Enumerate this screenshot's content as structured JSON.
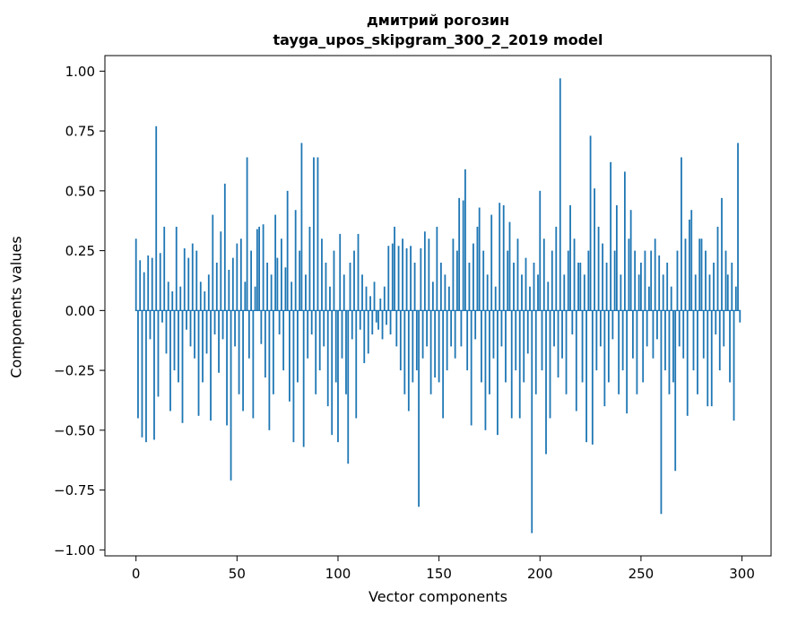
{
  "chart_data": {
    "type": "bar",
    "title_line1": "дмитрий рогозин",
    "title_line2": "tayga_upos_skipgram_300_2_2019 model",
    "xlabel": "Vector components",
    "ylabel": "Components values",
    "xlim": [
      -15.4,
      314.4
    ],
    "ylim": [
      -1.025,
      1.065
    ],
    "xticks": [
      0,
      50,
      100,
      150,
      200,
      250,
      300
    ],
    "yticks": [
      -1.0,
      -0.75,
      -0.5,
      -0.25,
      0.0,
      0.25,
      0.5,
      0.75,
      1.0
    ],
    "bar_color": "#1f77b4",
    "axis_color": "#000000",
    "bar_data_width": 0.8,
    "values": [
      0.3,
      -0.45,
      0.21,
      -0.53,
      0.16,
      -0.55,
      0.23,
      -0.12,
      0.22,
      -0.54,
      0.77,
      -0.36,
      0.24,
      -0.05,
      0.35,
      -0.18,
      0.12,
      -0.42,
      0.08,
      -0.25,
      0.35,
      -0.3,
      0.1,
      -0.47,
      0.26,
      -0.08,
      0.22,
      -0.15,
      0.28,
      -0.2,
      0.25,
      -0.44,
      0.12,
      -0.3,
      0.08,
      -0.18,
      0.15,
      -0.46,
      0.4,
      -0.1,
      0.2,
      -0.26,
      0.33,
      -0.12,
      0.53,
      -0.48,
      0.17,
      -0.71,
      0.22,
      -0.15,
      0.28,
      -0.35,
      0.3,
      -0.42,
      0.12,
      0.64,
      -0.2,
      0.25,
      -0.45,
      0.1,
      0.34,
      0.35,
      -0.14,
      0.36,
      -0.28,
      0.2,
      -0.5,
      0.15,
      -0.35,
      0.4,
      0.22,
      -0.1,
      0.3,
      -0.25,
      0.18,
      0.5,
      -0.38,
      0.12,
      -0.55,
      0.42,
      -0.3,
      0.25,
      0.7,
      -0.57,
      0.15,
      -0.2,
      0.35,
      -0.1,
      0.64,
      -0.35,
      0.64,
      -0.25,
      0.3,
      -0.15,
      0.2,
      -0.4,
      0.1,
      -0.52,
      0.25,
      -0.3,
      -0.55,
      0.32,
      -0.2,
      0.15,
      -0.35,
      -0.64,
      0.2,
      -0.12,
      0.25,
      -0.45,
      0.32,
      -0.08,
      0.15,
      -0.22,
      0.1,
      -0.18,
      0.06,
      -0.1,
      0.12,
      -0.05,
      -0.08,
      0.05,
      -0.12,
      0.1,
      -0.06,
      0.27,
      -0.1,
      0.28,
      0.35,
      -0.15,
      0.27,
      -0.25,
      0.3,
      -0.35,
      0.26,
      -0.42,
      0.27,
      -0.3,
      0.2,
      -0.25,
      -0.82,
      0.26,
      -0.2,
      0.33,
      -0.15,
      0.3,
      -0.35,
      0.12,
      -0.28,
      0.35,
      -0.3,
      0.2,
      -0.45,
      0.15,
      -0.25,
      0.1,
      -0.15,
      0.3,
      -0.2,
      0.25,
      0.47,
      -0.15,
      0.46,
      0.59,
      -0.25,
      0.2,
      -0.48,
      0.28,
      -0.12,
      0.35,
      0.43,
      -0.3,
      0.25,
      -0.5,
      0.15,
      -0.35,
      0.4,
      -0.2,
      0.1,
      -0.52,
      0.45,
      -0.15,
      0.44,
      -0.3,
      0.25,
      0.37,
      -0.45,
      0.2,
      -0.25,
      0.3,
      -0.45,
      0.15,
      -0.3,
      0.22,
      -0.18,
      0.1,
      -0.93,
      0.2,
      -0.35,
      0.15,
      0.5,
      -0.25,
      0.3,
      -0.6,
      0.12,
      -0.45,
      0.25,
      -0.15,
      0.35,
      -0.28,
      0.97,
      -0.2,
      0.15,
      -0.35,
      0.25,
      0.44,
      -0.1,
      0.3,
      -0.42,
      0.2,
      0.2,
      -0.3,
      0.15,
      -0.55,
      0.25,
      0.73,
      -0.56,
      0.51,
      -0.25,
      0.35,
      -0.15,
      0.28,
      -0.4,
      0.2,
      -0.3,
      0.62,
      -0.12,
      0.25,
      0.44,
      -0.35,
      0.15,
      -0.25,
      0.58,
      -0.43,
      0.3,
      0.42,
      -0.2,
      0.25,
      -0.35,
      0.15,
      0.2,
      -0.3,
      0.25,
      -0.15,
      0.1,
      0.25,
      -0.2,
      0.3,
      -0.12,
      0.23,
      -0.85,
      0.15,
      -0.25,
      0.2,
      -0.35,
      0.1,
      -0.3,
      -0.67,
      0.25,
      -0.15,
      0.64,
      -0.2,
      0.3,
      -0.44,
      0.38,
      0.42,
      -0.25,
      0.15,
      -0.35,
      0.3,
      0.3,
      -0.2,
      0.25,
      -0.4,
      0.15,
      -0.4,
      0.2,
      -0.1,
      0.35,
      -0.25,
      0.47,
      -0.15,
      0.25,
      0.15,
      -0.3,
      0.2,
      -0.46,
      0.1,
      0.7,
      -0.05
    ]
  }
}
